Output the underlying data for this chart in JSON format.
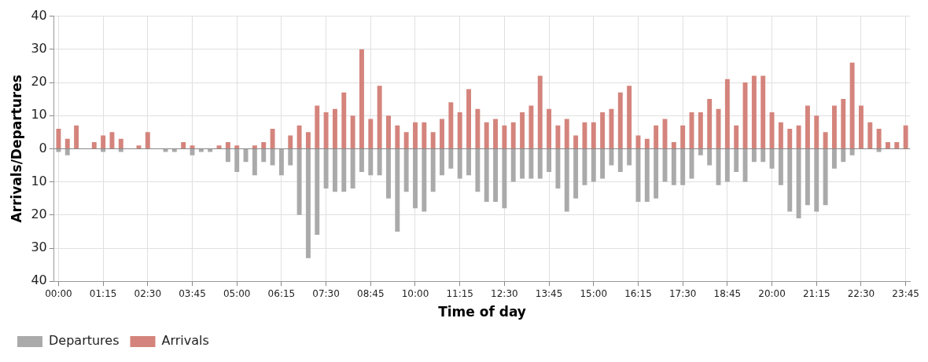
{
  "chart_data": {
    "type": "bar",
    "xlabel": "Time of day",
    "ylabel": "Arrivals/Departures",
    "categories": [
      "00:00",
      null,
      null,
      null,
      null,
      "01:15",
      null,
      null,
      null,
      null,
      "02:30",
      null,
      null,
      null,
      null,
      "03:45",
      null,
      null,
      null,
      null,
      "05:00",
      null,
      null,
      null,
      null,
      "06:15",
      null,
      null,
      null,
      null,
      "07:30",
      null,
      null,
      null,
      null,
      "08:45",
      null,
      null,
      null,
      null,
      "10:00",
      null,
      null,
      null,
      null,
      "11:15",
      null,
      null,
      null,
      null,
      "12:30",
      null,
      null,
      null,
      null,
      "13:45",
      null,
      null,
      null,
      null,
      "15:00",
      null,
      null,
      null,
      null,
      "16:15",
      null,
      null,
      null,
      null,
      "17:30",
      null,
      null,
      null,
      null,
      "18:45",
      null,
      null,
      null,
      null,
      "20:00",
      null,
      null,
      null,
      null,
      "21:15",
      null,
      null,
      null,
      null,
      "22:30",
      null,
      null,
      null,
      null,
      "23:45"
    ],
    "series": [
      {
        "name": "Departures",
        "color": "#aaaaaa",
        "values": [
          -1,
          -2,
          0,
          0,
          0,
          -1,
          0,
          -1,
          0,
          0,
          0,
          0,
          -1,
          -1,
          0,
          -2,
          -1,
          -1,
          0,
          -4,
          -7,
          -4,
          -8,
          -4,
          -5,
          -8,
          -5,
          -20,
          -33,
          -26,
          -12,
          -13,
          -13,
          -12,
          -7,
          -8,
          -8,
          -15,
          -25,
          -13,
          -18,
          -19,
          -13,
          -8,
          -6,
          -9,
          -8,
          -13,
          -16,
          -16,
          -18,
          -10,
          -9,
          -9,
          -9,
          -7,
          -12,
          -19,
          -15,
          -11,
          -10,
          -9,
          -5,
          -7,
          -5,
          -16,
          -16,
          -15,
          -10,
          -11,
          -11,
          -9,
          -2,
          -5,
          -11,
          -10,
          -7,
          -10,
          -4,
          -4,
          -6,
          -11,
          -19,
          -21,
          -17,
          -19,
          -17,
          -6,
          -4,
          -2,
          0,
          0,
          -1,
          0,
          0,
          0
        ]
      },
      {
        "name": "Arrivals",
        "color": "#d4847c",
        "values": [
          6,
          3,
          7,
          0,
          2,
          4,
          5,
          3,
          0,
          1,
          5,
          0,
          0,
          0,
          2,
          1,
          0,
          0,
          1,
          2,
          1,
          0,
          1,
          2,
          6,
          0,
          4,
          7,
          5,
          13,
          11,
          12,
          17,
          10,
          30,
          9,
          19,
          10,
          7,
          5,
          8,
          8,
          5,
          9,
          14,
          11,
          18,
          12,
          8,
          9,
          7,
          8,
          11,
          13,
          22,
          12,
          7,
          9,
          4,
          8,
          8,
          11,
          12,
          17,
          19,
          4,
          3,
          7,
          9,
          2,
          7,
          11,
          11,
          15,
          12,
          21,
          7,
          20,
          22,
          22,
          11,
          8,
          6,
          7,
          13,
          10,
          5,
          13,
          15,
          26,
          13,
          8,
          6,
          2,
          2,
          7
        ]
      }
    ],
    "stacked": true,
    "ylim": [
      -40,
      40
    ],
    "yticks": [
      {
        "value": -40,
        "label": "40"
      },
      {
        "value": -30,
        "label": "30"
      },
      {
        "value": -20,
        "label": "20"
      },
      {
        "value": -10,
        "label": "10"
      },
      0,
      10,
      20,
      30,
      40
    ],
    "grid": true,
    "legend": "bottom"
  }
}
